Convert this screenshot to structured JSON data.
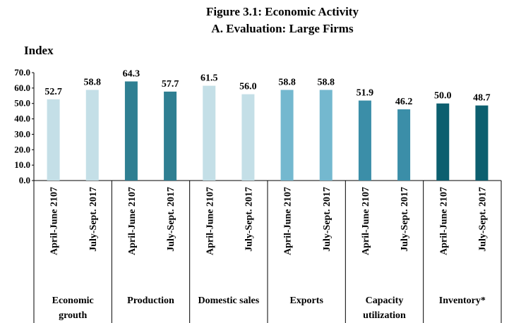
{
  "chart_data": {
    "type": "bar",
    "title": "Figure 3.1: Economic Activity",
    "subtitle": "A. Evaluation: Large Firms",
    "y_label": "Index",
    "categories": [
      "April-June 2107",
      "July-Sept. 2017",
      "April-June 2107",
      "July-Sept. 2017",
      "April-June 2107",
      "July-Sept. 2017",
      "April-June 2107",
      "July-Sept. 2017",
      "April-June 2107",
      "July-Sept. 2017",
      "April-June 2107",
      "July-Sept. 2017"
    ],
    "groups": [
      [
        "Economic",
        "grouth"
      ],
      [
        "Production"
      ],
      [
        "Domestic sales"
      ],
      [
        "Exports"
      ],
      [
        "Capacity",
        "utilization"
      ],
      [
        "Inventory*"
      ]
    ],
    "values": [
      52.7,
      58.8,
      64.3,
      57.7,
      61.5,
      56.0,
      58.8,
      58.8,
      51.9,
      46.2,
      50.0,
      48.7
    ],
    "value_labels": [
      "52.7",
      "58.8",
      "64.3",
      "57.7",
      "61.5",
      "56.0",
      "58.8",
      "58.8",
      "51.9",
      "46.2",
      "50.0",
      "48.7"
    ],
    "colors": [
      "#c4dfe7",
      "#c4dfe7",
      "#2f7f92",
      "#2f7f92",
      "#c4dfe7",
      "#c4dfe7",
      "#74b8cf",
      "#74b8cf",
      "#3b8ea8",
      "#3b8ea8",
      "#0c5f6f",
      "#0c5f6f"
    ],
    "ylim": [
      0,
      70
    ],
    "yticks": [
      {
        "value": 0,
        "label": "0.0"
      },
      {
        "value": 10,
        "label": "10.0"
      },
      {
        "value": 20,
        "label": "20.0"
      },
      {
        "value": 30,
        "label": "30.0"
      },
      {
        "value": 40,
        "label": "40.0"
      },
      {
        "value": 50,
        "label": "50.0"
      },
      {
        "value": 60,
        "label": "60.0"
      },
      {
        "value": 70,
        "label": "70.0"
      }
    ],
    "grid": false
  }
}
